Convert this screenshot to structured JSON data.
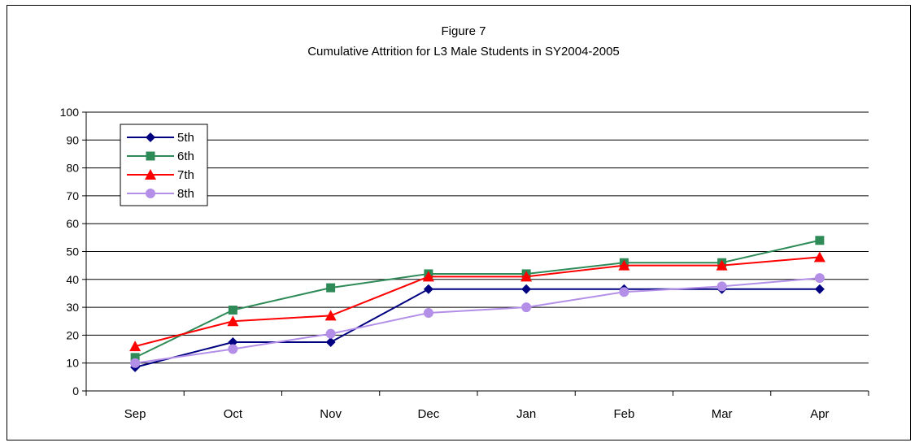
{
  "chart_data": {
    "type": "line",
    "title": "Figure 7",
    "subtitle": "Cumulative Attrition for L3 Male Students in SY2004-2005",
    "xlabel": "",
    "ylabel": "",
    "categories": [
      "Sep",
      "Oct",
      "Nov",
      "Dec",
      "Jan",
      "Feb",
      "Mar",
      "Apr"
    ],
    "ylim": [
      0,
      100
    ],
    "yticks": [
      0,
      10,
      20,
      30,
      40,
      50,
      60,
      70,
      80,
      90,
      100
    ],
    "grid": true,
    "legend_position": "top-left",
    "series": [
      {
        "name": "5th",
        "color": "#000080",
        "marker": "diamond",
        "values": [
          8.5,
          17.5,
          17.5,
          36.5,
          36.5,
          36.5,
          36.5,
          36.5
        ]
      },
      {
        "name": "6th",
        "color": "#2E8B57",
        "marker": "square",
        "values": [
          12,
          29,
          37,
          42,
          42,
          46,
          46,
          54
        ]
      },
      {
        "name": "7th",
        "color": "#FF0000",
        "marker": "triangle",
        "values": [
          16,
          25,
          27,
          41,
          41,
          45,
          45,
          48
        ]
      },
      {
        "name": "8th",
        "color": "#B38FE8",
        "marker": "circle",
        "values": [
          10,
          15,
          20.5,
          28,
          30,
          35.5,
          37.5,
          40.5
        ]
      }
    ]
  }
}
